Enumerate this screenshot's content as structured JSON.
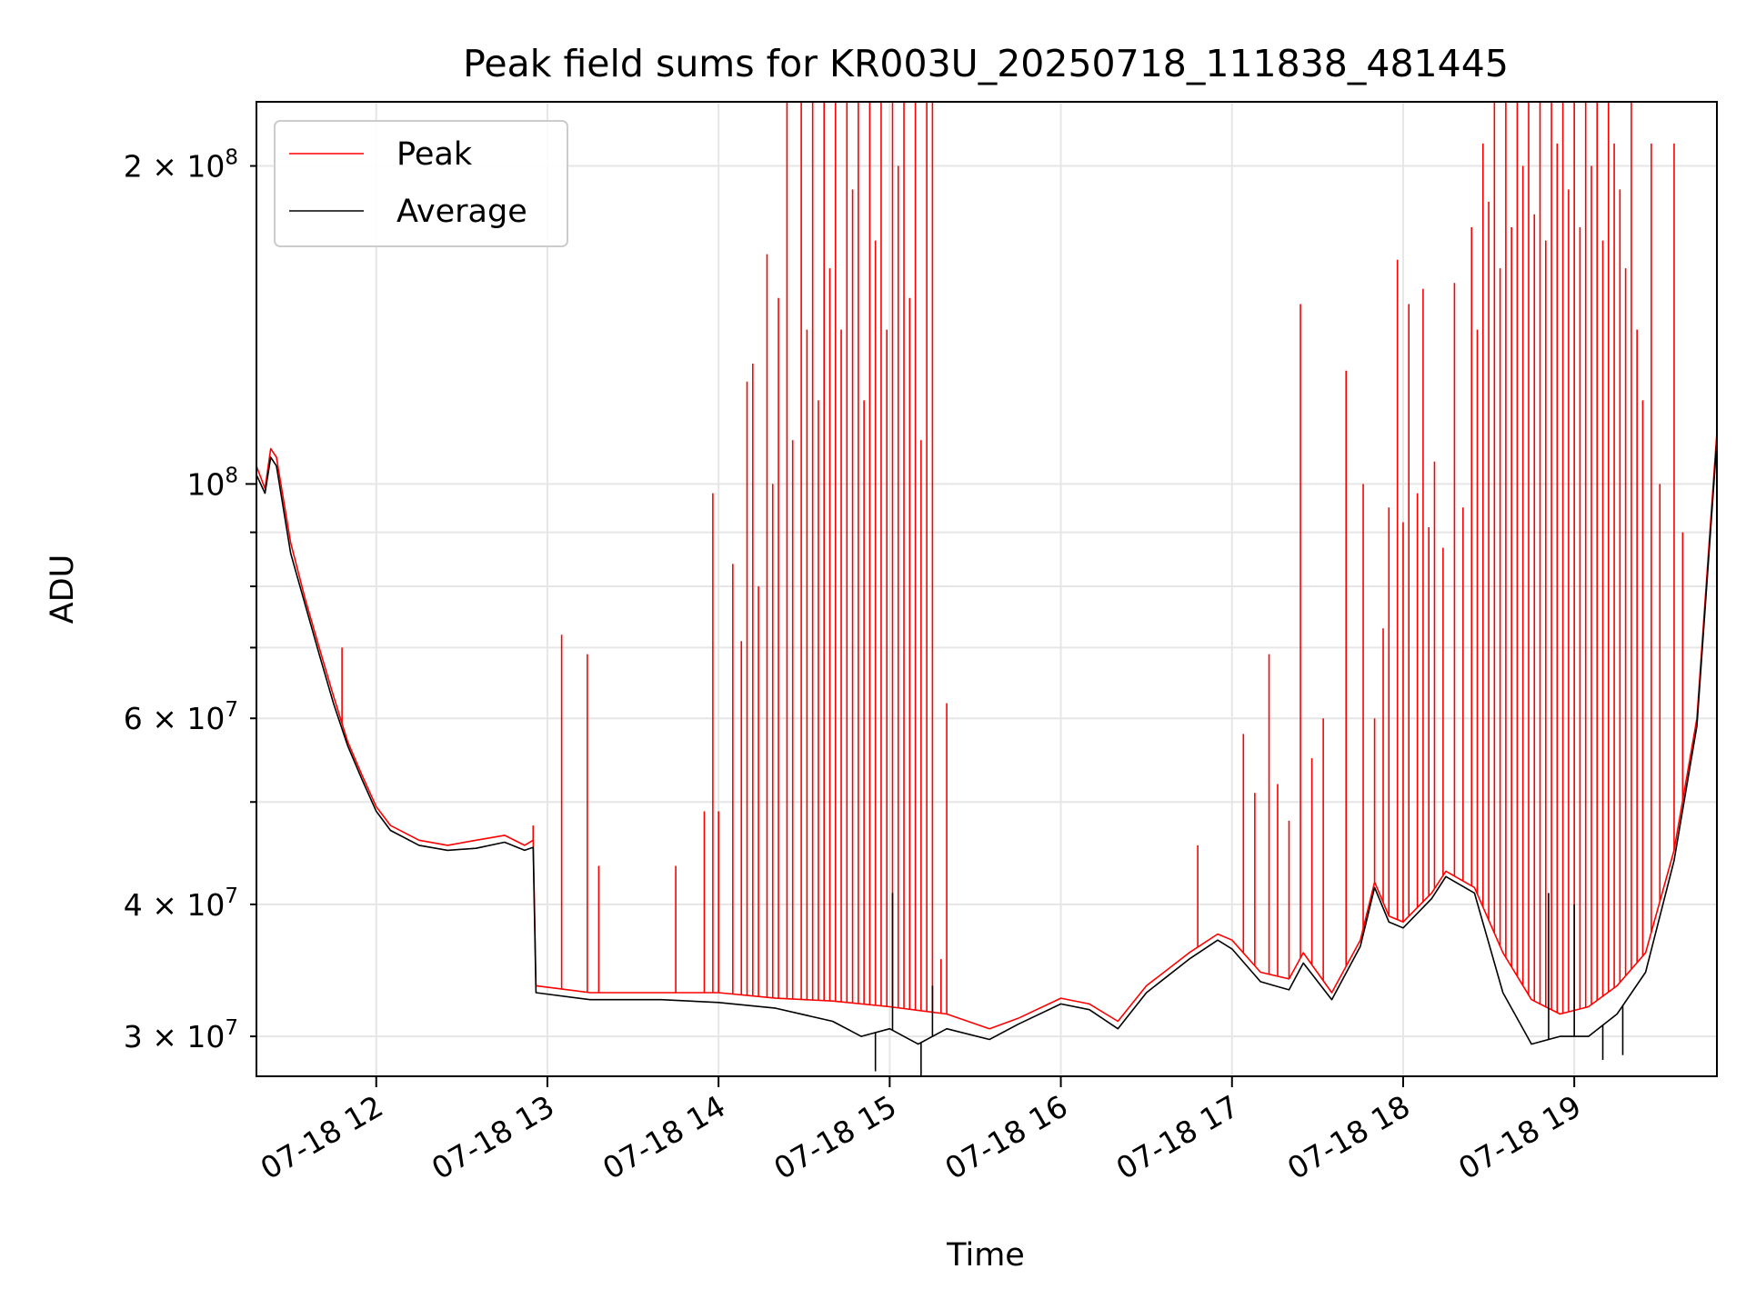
{
  "chart_data": {
    "type": "line",
    "title": "Peak field sums for KR003U_20250718_111838_481445",
    "xlabel": "Time",
    "ylabel": "ADU",
    "yscale": "log",
    "ylim": [
      27500000,
      230000000
    ],
    "xlim": [
      "2025-07-18T11:18",
      "2025-07-18T19:50"
    ],
    "grid": true,
    "legend_position": "top-left",
    "x_ticks": [
      {
        "value": "2025-07-18T12:00",
        "label": "07-18 12"
      },
      {
        "value": "2025-07-18T13:00",
        "label": "07-18 13"
      },
      {
        "value": "2025-07-18T14:00",
        "label": "07-18 14"
      },
      {
        "value": "2025-07-18T15:00",
        "label": "07-18 15"
      },
      {
        "value": "2025-07-18T16:00",
        "label": "07-18 16"
      },
      {
        "value": "2025-07-18T17:00",
        "label": "07-18 17"
      },
      {
        "value": "2025-07-18T18:00",
        "label": "07-18 18"
      },
      {
        "value": "2025-07-18T19:00",
        "label": "07-18 19"
      }
    ],
    "y_major_ticks": [
      {
        "value": 100000000,
        "label_base": "10",
        "label_exp": "8"
      }
    ],
    "y_minor_ticks": [
      {
        "value": 30000000,
        "label_base": "3 × 10",
        "label_exp": "7"
      },
      {
        "value": 40000000,
        "label_base": "4 × 10",
        "label_exp": "7"
      },
      {
        "value": 50000000,
        "label_base": "",
        "label_exp": ""
      },
      {
        "value": 60000000,
        "label_base": "6 × 10",
        "label_exp": "7"
      },
      {
        "value": 70000000,
        "label_base": "",
        "label_exp": ""
      },
      {
        "value": 80000000,
        "label_base": "",
        "label_exp": ""
      },
      {
        "value": 90000000,
        "label_base": "",
        "label_exp": ""
      },
      {
        "value": 200000000,
        "label_base": "2 × 10",
        "label_exp": "8"
      }
    ],
    "series": [
      {
        "name": "Peak",
        "color": "#ff0000",
        "baseline": [
          [
            "2025-07-18T11:18",
            104000000
          ],
          [
            "2025-07-18T11:21",
            99000000
          ],
          [
            "2025-07-18T11:23",
            108000000
          ],
          [
            "2025-07-18T11:25",
            106000000
          ],
          [
            "2025-07-18T11:30",
            88000000
          ],
          [
            "2025-07-18T11:35",
            78000000
          ],
          [
            "2025-07-18T11:40",
            70000000
          ],
          [
            "2025-07-18T11:45",
            63000000
          ],
          [
            "2025-07-18T11:50",
            57000000
          ],
          [
            "2025-07-18T11:55",
            53000000
          ],
          [
            "2025-07-18T12:00",
            49500000
          ],
          [
            "2025-07-18T12:05",
            47500000
          ],
          [
            "2025-07-18T12:15",
            46000000
          ],
          [
            "2025-07-18T12:25",
            45500000
          ],
          [
            "2025-07-18T12:35",
            46000000
          ],
          [
            "2025-07-18T12:45",
            46500000
          ],
          [
            "2025-07-18T12:52",
            45500000
          ],
          [
            "2025-07-18T12:55",
            46000000
          ],
          [
            "2025-07-18T12:56",
            33500000
          ],
          [
            "2025-07-18T13:15",
            33000000
          ],
          [
            "2025-07-18T13:40",
            33000000
          ],
          [
            "2025-07-18T14:00",
            33000000
          ],
          [
            "2025-07-18T14:20",
            32600000
          ],
          [
            "2025-07-18T14:40",
            32400000
          ],
          [
            "2025-07-18T15:00",
            32000000
          ],
          [
            "2025-07-18T15:20",
            31500000
          ],
          [
            "2025-07-18T15:35",
            30500000
          ],
          [
            "2025-07-18T15:45",
            31200000
          ],
          [
            "2025-07-18T16:00",
            32600000
          ],
          [
            "2025-07-18T16:10",
            32200000
          ],
          [
            "2025-07-18T16:20",
            31000000
          ],
          [
            "2025-07-18T16:30",
            33500000
          ],
          [
            "2025-07-18T16:45",
            36000000
          ],
          [
            "2025-07-18T16:55",
            37500000
          ],
          [
            "2025-07-18T17:00",
            37000000
          ],
          [
            "2025-07-18T17:10",
            34500000
          ],
          [
            "2025-07-18T17:20",
            34000000
          ],
          [
            "2025-07-18T17:25",
            36000000
          ],
          [
            "2025-07-18T17:35",
            33000000
          ],
          [
            "2025-07-18T17:45",
            37000000
          ],
          [
            "2025-07-18T17:50",
            42000000
          ],
          [
            "2025-07-18T17:55",
            39000000
          ],
          [
            "2025-07-18T18:00",
            38500000
          ],
          [
            "2025-07-18T18:10",
            41000000
          ],
          [
            "2025-07-18T18:15",
            43000000
          ],
          [
            "2025-07-18T18:25",
            41500000
          ],
          [
            "2025-07-18T18:35",
            36000000
          ],
          [
            "2025-07-18T18:45",
            32500000
          ],
          [
            "2025-07-18T18:55",
            31500000
          ],
          [
            "2025-07-18T19:05",
            32000000
          ],
          [
            "2025-07-18T19:15",
            33500000
          ],
          [
            "2025-07-18T19:25",
            36000000
          ],
          [
            "2025-07-18T19:35",
            45000000
          ],
          [
            "2025-07-18T19:43",
            60000000
          ],
          [
            "2025-07-18T19:50",
            112000000
          ]
        ],
        "spikes": [
          [
            "2025-07-18T11:48",
            70000000
          ],
          [
            "2025-07-18T12:55",
            47500000
          ],
          [
            "2025-07-18T13:05",
            72000000
          ],
          [
            "2025-07-18T13:14",
            69000000
          ],
          [
            "2025-07-18T13:18",
            43500000
          ],
          [
            "2025-07-18T13:45",
            43500000
          ],
          [
            "2025-07-18T13:55",
            49000000
          ],
          [
            "2025-07-18T13:58",
            98000000
          ],
          [
            "2025-07-18T14:00",
            49000000
          ],
          [
            "2025-07-18T14:05",
            84000000
          ],
          [
            "2025-07-18T14:08",
            71000000
          ],
          [
            "2025-07-18T14:10",
            125000000
          ],
          [
            "2025-07-18T14:12",
            130000000
          ],
          [
            "2025-07-18T14:14",
            80000000
          ],
          [
            "2025-07-18T14:17",
            165000000
          ],
          [
            "2025-07-18T14:19",
            100000000
          ],
          [
            "2025-07-18T14:21",
            150000000
          ],
          [
            "2025-07-18T14:24",
            230000000
          ],
          [
            "2025-07-18T14:26",
            110000000
          ],
          [
            "2025-07-18T14:29",
            230000000
          ],
          [
            "2025-07-18T14:31",
            140000000
          ],
          [
            "2025-07-18T14:33",
            230000000
          ],
          [
            "2025-07-18T14:35",
            120000000
          ],
          [
            "2025-07-18T14:37",
            230000000
          ],
          [
            "2025-07-18T14:39",
            160000000
          ],
          [
            "2025-07-18T14:41",
            230000000
          ],
          [
            "2025-07-18T14:43",
            140000000
          ],
          [
            "2025-07-18T14:45",
            230000000
          ],
          [
            "2025-07-18T14:47",
            190000000
          ],
          [
            "2025-07-18T14:49",
            230000000
          ],
          [
            "2025-07-18T14:51",
            120000000
          ],
          [
            "2025-07-18T14:53",
            230000000
          ],
          [
            "2025-07-18T14:55",
            170000000
          ],
          [
            "2025-07-18T14:57",
            230000000
          ],
          [
            "2025-07-18T14:59",
            140000000
          ],
          [
            "2025-07-18T15:01",
            230000000
          ],
          [
            "2025-07-18T15:03",
            200000000
          ],
          [
            "2025-07-18T15:05",
            230000000
          ],
          [
            "2025-07-18T15:07",
            150000000
          ],
          [
            "2025-07-18T15:09",
            230000000
          ],
          [
            "2025-07-18T15:11",
            110000000
          ],
          [
            "2025-07-18T15:13",
            230000000
          ],
          [
            "2025-07-18T15:15",
            230000000
          ],
          [
            "2025-07-18T15:18",
            35500000
          ],
          [
            "2025-07-18T15:20",
            62000000
          ],
          [
            "2025-07-18T16:48",
            45500000
          ],
          [
            "2025-07-18T17:04",
            58000000
          ],
          [
            "2025-07-18T17:08",
            51000000
          ],
          [
            "2025-07-18T17:13",
            69000000
          ],
          [
            "2025-07-18T17:16",
            52000000
          ],
          [
            "2025-07-18T17:20",
            48000000
          ],
          [
            "2025-07-18T17:24",
            148000000
          ],
          [
            "2025-07-18T17:28",
            55000000
          ],
          [
            "2025-07-18T17:32",
            60000000
          ],
          [
            "2025-07-18T17:40",
            128000000
          ],
          [
            "2025-07-18T17:46",
            100000000
          ],
          [
            "2025-07-18T17:50",
            60000000
          ],
          [
            "2025-07-18T17:53",
            73000000
          ],
          [
            "2025-07-18T17:55",
            95000000
          ],
          [
            "2025-07-18T17:58",
            163000000
          ],
          [
            "2025-07-18T18:00",
            92000000
          ],
          [
            "2025-07-18T18:02",
            148000000
          ],
          [
            "2025-07-18T18:05",
            98000000
          ],
          [
            "2025-07-18T18:07",
            153000000
          ],
          [
            "2025-07-18T18:09",
            91000000
          ],
          [
            "2025-07-18T18:11",
            105000000
          ],
          [
            "2025-07-18T18:14",
            87000000
          ],
          [
            "2025-07-18T18:18",
            155000000
          ],
          [
            "2025-07-18T18:21",
            95000000
          ],
          [
            "2025-07-18T18:24",
            175000000
          ],
          [
            "2025-07-18T18:26",
            140000000
          ],
          [
            "2025-07-18T18:28",
            210000000
          ],
          [
            "2025-07-18T18:30",
            185000000
          ],
          [
            "2025-07-18T18:32",
            230000000
          ],
          [
            "2025-07-18T18:34",
            160000000
          ],
          [
            "2025-07-18T18:36",
            230000000
          ],
          [
            "2025-07-18T18:38",
            175000000
          ],
          [
            "2025-07-18T18:40",
            230000000
          ],
          [
            "2025-07-18T18:42",
            200000000
          ],
          [
            "2025-07-18T18:44",
            230000000
          ],
          [
            "2025-07-18T18:46",
            180000000
          ],
          [
            "2025-07-18T18:48",
            230000000
          ],
          [
            "2025-07-18T18:50",
            170000000
          ],
          [
            "2025-07-18T18:52",
            230000000
          ],
          [
            "2025-07-18T18:54",
            210000000
          ],
          [
            "2025-07-18T18:56",
            230000000
          ],
          [
            "2025-07-18T18:58",
            190000000
          ],
          [
            "2025-07-18T19:00",
            230000000
          ],
          [
            "2025-07-18T19:02",
            175000000
          ],
          [
            "2025-07-18T19:04",
            230000000
          ],
          [
            "2025-07-18T19:06",
            200000000
          ],
          [
            "2025-07-18T19:08",
            230000000
          ],
          [
            "2025-07-18T19:10",
            170000000
          ],
          [
            "2025-07-18T19:12",
            230000000
          ],
          [
            "2025-07-18T19:14",
            210000000
          ],
          [
            "2025-07-18T19:16",
            190000000
          ],
          [
            "2025-07-18T19:18",
            160000000
          ],
          [
            "2025-07-18T19:20",
            230000000
          ],
          [
            "2025-07-18T19:22",
            140000000
          ],
          [
            "2025-07-18T19:24",
            120000000
          ],
          [
            "2025-07-18T19:27",
            210000000
          ],
          [
            "2025-07-18T19:30",
            100000000
          ],
          [
            "2025-07-18T19:35",
            210000000
          ],
          [
            "2025-07-18T19:38",
            90000000
          ]
        ]
      },
      {
        "name": "Average",
        "color": "#000000",
        "baseline": [
          [
            "2025-07-18T11:18",
            102000000
          ],
          [
            "2025-07-18T11:21",
            98000000
          ],
          [
            "2025-07-18T11:23",
            106000000
          ],
          [
            "2025-07-18T11:25",
            104000000
          ],
          [
            "2025-07-18T11:30",
            86000000
          ],
          [
            "2025-07-18T11:35",
            77000000
          ],
          [
            "2025-07-18T11:40",
            69000000
          ],
          [
            "2025-07-18T11:45",
            62000000
          ],
          [
            "2025-07-18T11:50",
            56500000
          ],
          [
            "2025-07-18T11:55",
            52500000
          ],
          [
            "2025-07-18T12:00",
            49000000
          ],
          [
            "2025-07-18T12:05",
            47000000
          ],
          [
            "2025-07-18T12:15",
            45500000
          ],
          [
            "2025-07-18T12:25",
            45000000
          ],
          [
            "2025-07-18T12:35",
            45200000
          ],
          [
            "2025-07-18T12:45",
            45800000
          ],
          [
            "2025-07-18T12:52",
            45000000
          ],
          [
            "2025-07-18T12:55",
            45300000
          ],
          [
            "2025-07-18T12:56",
            33000000
          ],
          [
            "2025-07-18T13:15",
            32500000
          ],
          [
            "2025-07-18T13:40",
            32500000
          ],
          [
            "2025-07-18T14:00",
            32300000
          ],
          [
            "2025-07-18T14:20",
            31900000
          ],
          [
            "2025-07-18T14:40",
            31000000
          ],
          [
            "2025-07-18T14:50",
            30000000
          ],
          [
            "2025-07-18T15:00",
            30500000
          ],
          [
            "2025-07-18T15:10",
            29500000
          ],
          [
            "2025-07-18T15:20",
            30500000
          ],
          [
            "2025-07-18T15:35",
            29800000
          ],
          [
            "2025-07-18T15:45",
            30800000
          ],
          [
            "2025-07-18T16:00",
            32200000
          ],
          [
            "2025-07-18T16:10",
            31800000
          ],
          [
            "2025-07-18T16:20",
            30500000
          ],
          [
            "2025-07-18T16:30",
            33000000
          ],
          [
            "2025-07-18T16:45",
            35500000
          ],
          [
            "2025-07-18T16:55",
            37000000
          ],
          [
            "2025-07-18T17:00",
            36300000
          ],
          [
            "2025-07-18T17:10",
            33800000
          ],
          [
            "2025-07-18T17:20",
            33200000
          ],
          [
            "2025-07-18T17:25",
            35200000
          ],
          [
            "2025-07-18T17:35",
            32500000
          ],
          [
            "2025-07-18T17:45",
            36500000
          ],
          [
            "2025-07-18T17:50",
            41500000
          ],
          [
            "2025-07-18T17:55",
            38500000
          ],
          [
            "2025-07-18T18:00",
            38000000
          ],
          [
            "2025-07-18T18:10",
            40500000
          ],
          [
            "2025-07-18T18:15",
            42500000
          ],
          [
            "2025-07-18T18:25",
            41000000
          ],
          [
            "2025-07-18T18:35",
            33000000
          ],
          [
            "2025-07-18T18:45",
            29500000
          ],
          [
            "2025-07-18T18:55",
            30000000
          ],
          [
            "2025-07-18T19:05",
            30000000
          ],
          [
            "2025-07-18T19:15",
            31500000
          ],
          [
            "2025-07-18T19:25",
            34500000
          ],
          [
            "2025-07-18T19:35",
            44000000
          ],
          [
            "2025-07-18T19:43",
            59000000
          ],
          [
            "2025-07-18T19:50",
            110000000
          ]
        ],
        "spikes": [
          [
            "2025-07-18T14:55",
            27800000
          ],
          [
            "2025-07-18T15:01",
            41000000
          ],
          [
            "2025-07-18T15:11",
            27500000
          ],
          [
            "2025-07-18T15:15",
            33500000
          ],
          [
            "2025-07-18T18:51",
            41000000
          ],
          [
            "2025-07-18T19:00",
            40000000
          ],
          [
            "2025-07-18T19:10",
            28500000
          ],
          [
            "2025-07-18T19:17",
            28800000
          ]
        ]
      }
    ]
  }
}
